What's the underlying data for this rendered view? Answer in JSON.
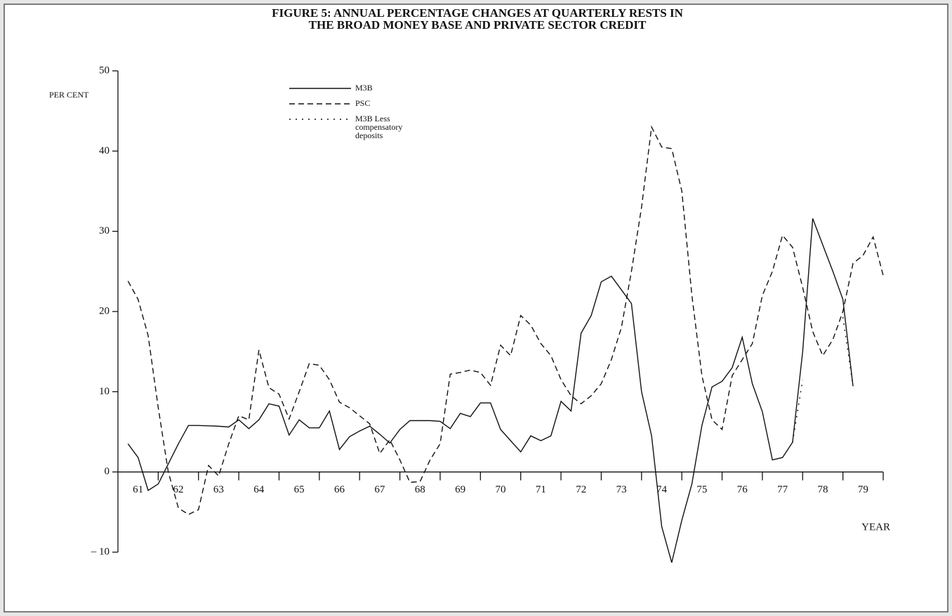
{
  "chart_data": {
    "type": "line",
    "title": [
      "FIGURE 5: ANNUAL PERCENTAGE CHANGES AT QUARTERLY RESTS IN",
      "THE BROAD MONEY BASE AND PRIVATE SECTOR CREDIT"
    ],
    "ylabel": "PER CENT",
    "xlabel": "YEAR",
    "xlim": [
      61,
      80
    ],
    "ylim": [
      -10,
      50
    ],
    "yticks": [
      {
        "value": -10,
        "label": "– 10"
      },
      0,
      10,
      20,
      30,
      40,
      50
    ],
    "xtick_marks": [
      62,
      63,
      64,
      65,
      66,
      67,
      68,
      69,
      70,
      71,
      72,
      73,
      74,
      75,
      76,
      77,
      78,
      79,
      80
    ],
    "xticks": [
      {
        "value": 61.5,
        "label": "61"
      },
      {
        "value": 62.5,
        "label": "62"
      },
      {
        "value": 63.5,
        "label": "63"
      },
      {
        "value": 64.5,
        "label": "64"
      },
      {
        "value": 65.5,
        "label": "65"
      },
      {
        "value": 66.5,
        "label": "66"
      },
      {
        "value": 67.5,
        "label": "67"
      },
      {
        "value": 68.5,
        "label": "68"
      },
      {
        "value": 69.5,
        "label": "69"
      },
      {
        "value": 70.5,
        "label": "70"
      },
      {
        "value": 71.5,
        "label": "71"
      },
      {
        "value": 72.5,
        "label": "72"
      },
      {
        "value": 73.5,
        "label": "73"
      },
      {
        "value": 74.5,
        "label": "74"
      },
      {
        "value": 75.5,
        "label": "75"
      },
      {
        "value": 76.5,
        "label": "76"
      },
      {
        "value": 77.5,
        "label": "77"
      },
      {
        "value": 78.5,
        "label": "78"
      },
      {
        "value": 79.5,
        "label": "79"
      }
    ],
    "x": [
      61.25,
      61.5,
      61.75,
      62,
      62.25,
      62.5,
      62.75,
      63,
      63.25,
      63.5,
      63.75,
      64,
      64.25,
      64.5,
      64.75,
      65,
      65.25,
      65.5,
      65.75,
      66,
      66.25,
      66.5,
      66.75,
      67,
      67.25,
      67.5,
      67.75,
      68,
      68.25,
      68.5,
      68.75,
      69,
      69.25,
      69.5,
      69.75,
      70,
      70.25,
      70.5,
      70.75,
      71,
      71.25,
      71.5,
      71.75,
      72,
      72.25,
      72.5,
      72.75,
      73,
      73.25,
      73.5,
      73.75,
      74,
      74.25,
      74.5,
      74.75,
      75,
      75.25,
      75.5,
      75.75,
      76,
      76.25,
      76.5,
      76.75,
      77,
      77.25,
      77.5,
      77.75,
      78,
      78.25,
      78.5,
      78.75,
      79,
      79.25,
      79.5,
      79.75,
      80
    ],
    "series": [
      {
        "name": "M3B",
        "color": "#111111",
        "dash": "solid",
        "values": [
          3.5,
          1.8,
          -2.3,
          -1.5,
          1,
          3.5,
          5.8,
          5.8,
          5.75,
          5.7,
          5.6,
          6.5,
          5.4,
          6.5,
          8.5,
          8.2,
          4.6,
          6.5,
          5.5,
          5.5,
          7.6,
          2.8,
          4.4,
          5.1,
          5.7,
          4.7,
          3.6,
          5.3,
          6.4,
          6.4,
          6.4,
          6.3,
          5.4,
          7.3,
          6.9,
          8.6,
          8.6,
          5.3,
          3.9,
          2.5,
          4.5,
          3.9,
          4.5,
          8.8,
          7.6,
          17.3,
          19.5,
          23.7,
          24.4,
          22.7,
          21,
          10,
          4.5,
          -6.8,
          -11.3,
          -6,
          -1.5,
          5.8,
          10.6,
          11.3,
          13,
          16.8,
          11,
          7.5,
          1.5,
          1.8,
          3.7,
          15,
          31.6,
          28.3,
          25,
          21.5,
          10.7,
          null,
          null,
          null
        ]
      },
      {
        "name": "PSC",
        "color": "#111111",
        "dash": "dashed",
        "values": [
          23.8,
          21.5,
          17,
          8,
          0,
          -4.5,
          -5.3,
          -4.7,
          0.8,
          -0.5,
          3.5,
          7,
          6.5,
          15.2,
          10.5,
          9.7,
          6.6,
          10,
          13.5,
          13.3,
          11.5,
          8.7,
          8,
          7,
          6,
          2.3,
          4,
          1.5,
          -1.3,
          -1.2,
          1.5,
          3.5,
          12.2,
          12.4,
          12.7,
          12.4,
          10.8,
          15.8,
          14.5,
          19.5,
          18.3,
          16,
          14.5,
          11.5,
          9.5,
          8.5,
          9.5,
          11,
          14,
          18,
          25,
          33,
          43,
          40.5,
          40.3,
          35,
          22,
          12,
          6.5,
          5.3,
          12,
          14,
          16,
          22,
          25,
          29.5,
          28,
          23,
          17.5,
          14.5,
          16.5,
          20,
          26,
          27,
          29.3,
          24.5
        ]
      },
      {
        "name": "M3B Less compensatory deposits",
        "color": "#111111",
        "dash": "dotted",
        "values": [
          null,
          null,
          null,
          null,
          null,
          null,
          null,
          null,
          null,
          null,
          null,
          null,
          null,
          null,
          null,
          null,
          null,
          null,
          null,
          null,
          null,
          null,
          null,
          null,
          null,
          null,
          null,
          null,
          null,
          null,
          null,
          null,
          null,
          null,
          null,
          null,
          null,
          null,
          null,
          null,
          null,
          null,
          null,
          null,
          null,
          null,
          null,
          null,
          null,
          null,
          null,
          null,
          null,
          null,
          null,
          null,
          null,
          null,
          null,
          null,
          null,
          null,
          null,
          null,
          null,
          null,
          3.7,
          11.5,
          null,
          null,
          null,
          19.3,
          10.7,
          null,
          null,
          null
        ]
      }
    ]
  }
}
